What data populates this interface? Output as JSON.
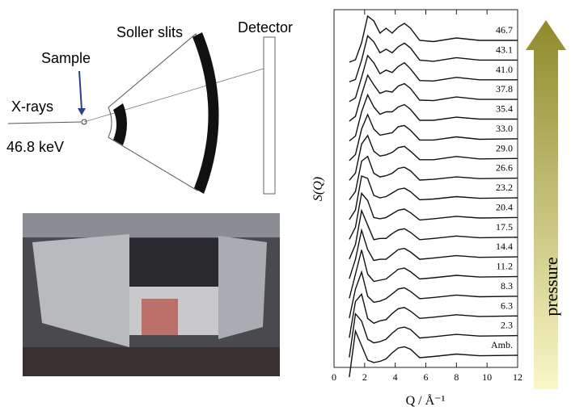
{
  "diagram": {
    "labels": {
      "soller": "Soller slits",
      "detector": "Detector",
      "sample": "Sample",
      "xrays": "X-rays",
      "energy": "46.8 keV"
    }
  },
  "arrow_label": "pressure",
  "chart_data": {
    "type": "line",
    "xlabel": "Q / Å⁻¹",
    "ylabel": "S(Q)",
    "color": "#111111",
    "xlim": [
      0,
      12
    ],
    "xticks": [
      0,
      2,
      4,
      6,
      8,
      10,
      12
    ],
    "x": [
      1.0,
      1.4,
      1.8,
      2.2,
      2.6,
      3.0,
      3.4,
      3.8,
      4.2,
      4.6,
      5.0,
      5.6,
      6.5,
      8.0,
      9.5,
      12.0
    ],
    "series": [
      {
        "name": "Amb.",
        "values": [
          0.1,
          2.0,
          1.4,
          0.8,
          0.7,
          0.75,
          0.85,
          1.1,
          1.3,
          1.35,
          1.25,
          0.9,
          0.95,
          1.05,
          0.98,
          1.0
        ]
      },
      {
        "name": "2.3",
        "values": [
          0.1,
          1.9,
          1.6,
          0.85,
          0.7,
          0.75,
          0.85,
          1.1,
          1.3,
          1.35,
          1.25,
          0.9,
          0.95,
          1.05,
          0.98,
          1.0
        ]
      },
      {
        "name": "6.3",
        "values": [
          0.1,
          1.6,
          1.9,
          0.9,
          0.7,
          0.8,
          0.85,
          1.1,
          1.3,
          1.35,
          1.2,
          0.9,
          0.95,
          1.05,
          0.98,
          1.0
        ]
      },
      {
        "name": "8.3",
        "values": [
          0.1,
          1.3,
          2.0,
          1.0,
          0.75,
          0.8,
          0.9,
          1.1,
          1.3,
          1.35,
          1.2,
          0.9,
          0.95,
          1.05,
          0.98,
          1.0
        ]
      },
      {
        "name": "11.2",
        "values": [
          0.1,
          1.1,
          2.1,
          1.1,
          0.8,
          0.85,
          0.9,
          1.1,
          1.3,
          1.35,
          1.2,
          0.9,
          0.95,
          1.05,
          0.98,
          1.0
        ]
      },
      {
        "name": "14.4",
        "values": [
          0.1,
          0.9,
          2.1,
          1.3,
          0.85,
          0.9,
          0.9,
          1.1,
          1.3,
          1.35,
          1.2,
          0.9,
          0.95,
          1.05,
          0.98,
          1.0
        ]
      },
      {
        "name": "17.5",
        "values": [
          0.1,
          0.7,
          2.1,
          1.5,
          0.9,
          0.95,
          0.95,
          1.15,
          1.3,
          1.35,
          1.2,
          0.9,
          0.95,
          1.05,
          0.98,
          1.0
        ]
      },
      {
        "name": "20.4",
        "values": [
          0.1,
          0.6,
          2.0,
          1.7,
          1.0,
          0.95,
          1.0,
          1.15,
          1.3,
          1.35,
          1.2,
          0.9,
          0.95,
          1.05,
          0.98,
          1.0
        ]
      },
      {
        "name": "23.2",
        "values": [
          0.1,
          0.5,
          1.9,
          1.8,
          1.1,
          1.0,
          1.05,
          1.2,
          1.35,
          1.4,
          1.25,
          0.92,
          0.95,
          1.05,
          0.98,
          1.0
        ]
      },
      {
        "name": "26.6",
        "values": [
          0.1,
          0.45,
          1.7,
          1.9,
          1.2,
          1.05,
          1.1,
          1.2,
          1.4,
          1.45,
          1.3,
          0.92,
          0.95,
          1.05,
          0.98,
          1.0
        ]
      },
      {
        "name": "29.0",
        "values": [
          0.1,
          0.4,
          1.6,
          1.95,
          1.3,
          1.1,
          1.15,
          1.25,
          1.45,
          1.5,
          1.3,
          0.95,
          0.95,
          1.08,
          0.98,
          1.0
        ]
      },
      {
        "name": "33.0",
        "values": [
          0.1,
          0.35,
          1.4,
          2.0,
          1.4,
          1.15,
          1.2,
          1.25,
          1.5,
          1.55,
          1.35,
          0.95,
          0.95,
          1.08,
          0.98,
          1.0
        ]
      },
      {
        "name": "35.4",
        "values": [
          0.1,
          0.3,
          1.3,
          2.0,
          1.5,
          1.2,
          1.3,
          1.3,
          1.5,
          1.6,
          1.4,
          0.95,
          0.95,
          1.08,
          1.0,
          1.0
        ]
      },
      {
        "name": "37.8",
        "values": [
          0.1,
          0.3,
          1.2,
          2.0,
          1.6,
          1.25,
          1.35,
          1.3,
          1.55,
          1.65,
          1.45,
          0.97,
          0.95,
          1.1,
          1.0,
          1.0
        ]
      },
      {
        "name": "41.0",
        "values": [
          0.1,
          0.25,
          1.1,
          2.0,
          1.7,
          1.25,
          1.4,
          1.3,
          1.55,
          1.7,
          1.45,
          0.97,
          0.95,
          1.1,
          1.0,
          1.0
        ]
      },
      {
        "name": "43.1",
        "values": [
          0.1,
          0.2,
          1.0,
          2.0,
          1.75,
          1.3,
          1.45,
          1.3,
          1.55,
          1.7,
          1.5,
          1.0,
          0.95,
          1.1,
          1.0,
          1.0
        ]
      },
      {
        "name": "46.7",
        "values": [
          0.1,
          0.2,
          0.9,
          2.0,
          1.8,
          1.3,
          1.5,
          1.3,
          1.55,
          1.7,
          1.5,
          1.0,
          0.95,
          1.1,
          1.0,
          1.0
        ]
      }
    ]
  }
}
